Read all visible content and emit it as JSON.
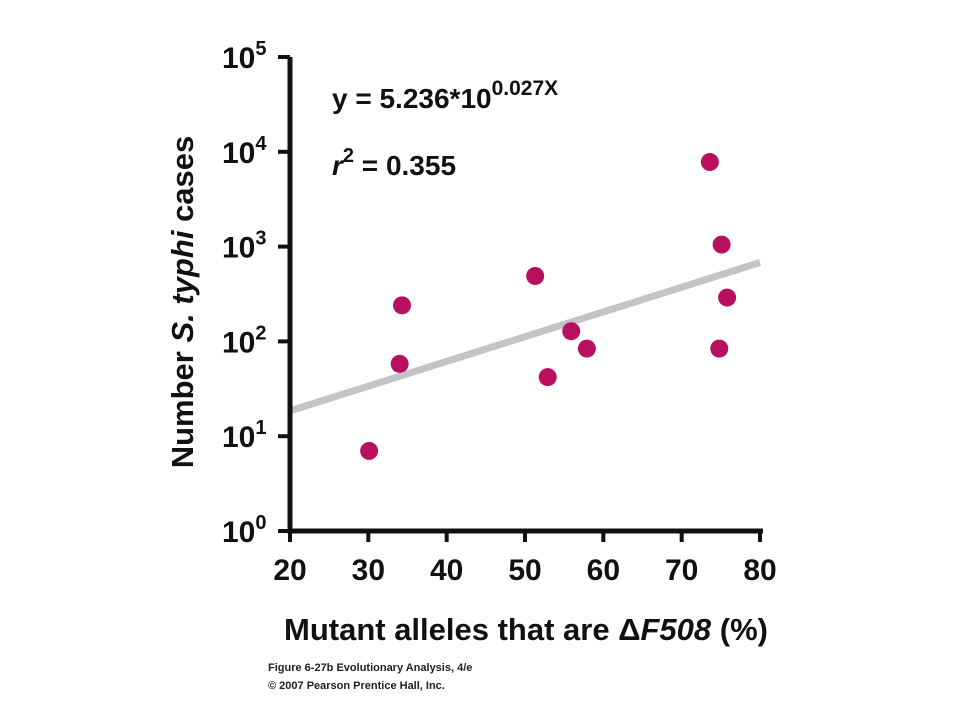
{
  "chart_data": {
    "type": "scatter",
    "xlabel_main": "Mutant alleles that are ",
    "xlabel_delta": "Δ",
    "xlabel_italic": "F508",
    "xlabel_unit": " (%)",
    "ylabel_main": "Number ",
    "ylabel_italic": "S. typhi",
    "ylabel_end": " cases",
    "x_ticks": [
      "20",
      "30",
      "40",
      "50",
      "60",
      "70",
      "80"
    ],
    "x_tick_values": [
      20,
      30,
      40,
      50,
      60,
      70,
      80
    ],
    "y_tick_exponents": [
      0,
      1,
      2,
      3,
      4,
      5
    ],
    "y_tick_base": "10",
    "xlim": [
      20,
      80
    ],
    "ylim_log10": [
      0,
      5
    ],
    "y_scale": "log10",
    "points": [
      {
        "x": 30.1,
        "y": 7
      },
      {
        "x": 34.0,
        "y": 58
      },
      {
        "x": 34.3,
        "y": 240
      },
      {
        "x": 51.3,
        "y": 490
      },
      {
        "x": 52.9,
        "y": 42
      },
      {
        "x": 55.9,
        "y": 128
      },
      {
        "x": 57.9,
        "y": 84
      },
      {
        "x": 73.6,
        "y": 7800
      },
      {
        "x": 74.8,
        "y": 84
      },
      {
        "x": 75.1,
        "y": 1050
      },
      {
        "x": 75.8,
        "y": 290
      }
    ],
    "trendline": {
      "x_range": [
        20,
        80
      ],
      "y_start": 18.5,
      "y_end": 680
    },
    "equation_prefix": "y = 5.236*10",
    "equation_exponent": "0.027X",
    "r2_var": "r",
    "r2_exp": "2",
    "r2_value": " = 0.355",
    "colors": {
      "points": "#b8105f",
      "trendline": "#c4c4c8",
      "axes": "#111111"
    }
  },
  "caption": {
    "line1": "Figure 6-27b  Evolutionary Analysis, 4/e",
    "line2": "© 2007 Pearson Prentice Hall, Inc."
  }
}
